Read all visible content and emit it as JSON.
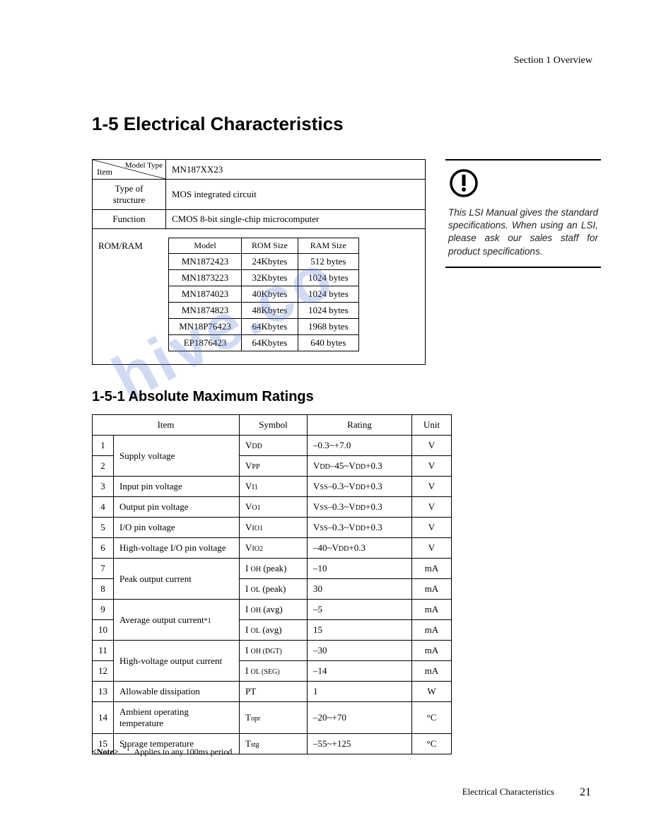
{
  "header": {
    "section": "Section 1  Overview"
  },
  "title": "1-5 Electrical Characteristics",
  "info_table": {
    "diag_top": "Model Type",
    "diag_bot": "Item",
    "model_header": "MN187XX23",
    "rows": [
      {
        "label": "Type of structure",
        "value": "MOS integrated circuit"
      },
      {
        "label": "Function",
        "value": "CMOS 8-bit single-chip microcomputer"
      }
    ],
    "romram_label": "ROM/RAM",
    "inner_headers": [
      "Model",
      "ROM Size",
      "RAM Size"
    ],
    "inner_rows": [
      [
        "MN1872423",
        "24Kbytes",
        "512 bytes"
      ],
      [
        "MN1873223",
        "32Kbytes",
        "1024 bytes"
      ],
      [
        "MN1874023",
        "40Kbytes",
        "1024 bytes"
      ],
      [
        "MN1874823",
        "48Kbytes",
        "1024 bytes"
      ],
      [
        "MN18P76423",
        "64Kbytes",
        "1968 bytes"
      ],
      [
        "EP1876423",
        "64Kbytes",
        "640 bytes"
      ]
    ]
  },
  "callout": {
    "text": "This LSI Manual gives the standard specifications. When using an LSI, please ask our sales staff for product specifications."
  },
  "subtitle": "1-5-1 Absolute Maximum Ratings",
  "ratings": {
    "headers": [
      "Item",
      "Symbol",
      "Rating",
      "Unit"
    ],
    "rows": [
      {
        "n": "1",
        "item": "Supply voltage",
        "rowspan": 2,
        "sym_html": "V<span class='sub'>DD</span>",
        "rating": "–0.3~+7.0",
        "unit": "V"
      },
      {
        "n": "2",
        "sym_html": "V<span class='sub'>PP</span>",
        "rating_html": "V<span class='sub'>DD</span>–45~V<span class='sub'>DD</span>+0.3",
        "unit": "V"
      },
      {
        "n": "3",
        "item": "Input pin voltage",
        "sym_html": "V<span class='sub'>I1</span>",
        "rating_html": "V<span class='sub'>SS</span>–0.3~V<span class='sub'>DD</span>+0.3",
        "unit": "V"
      },
      {
        "n": "4",
        "item": "Output pin voltage",
        "sym_html": "V<span class='sub'>O1</span>",
        "rating_html": "V<span class='sub'>SS</span>–0.3~V<span class='sub'>DD</span>+0.3",
        "unit": "V"
      },
      {
        "n": "5",
        "item": "I/O pin voltage",
        "sym_html": "V<span class='sub'>IO1</span>",
        "rating_html": "V<span class='sub'>SS</span>–0.3~V<span class='sub'>DD</span>+0.3",
        "unit": "V"
      },
      {
        "n": "6",
        "item": "High-voltage I/O pin voltage",
        "sym_html": "V<span class='sub'>IO2</span>",
        "rating_html": "–40~V<span class='sub'>DD</span>+0.3",
        "unit": "V"
      },
      {
        "n": "7",
        "item": "Peak output current",
        "rowspan": 2,
        "sym_html": "I <span class='sub'>OH</span> (peak)",
        "rating": "–10",
        "unit": "mA"
      },
      {
        "n": "8",
        "sym_html": "I <span class='sub'>OL</span> (peak)",
        "rating": "30",
        "unit": "mA"
      },
      {
        "n": "9",
        "item_html": "Average output current<span class='sub'>*1</span>",
        "rowspan": 2,
        "sym_html": "I <span class='sub'>OH</span> (avg)",
        "rating": "–5",
        "unit": "mA"
      },
      {
        "n": "10",
        "sym_html": "I <span class='sub'>OL</span> (avg)",
        "rating": "15",
        "unit": "mA"
      },
      {
        "n": "11",
        "item": "High-voltage output current",
        "rowspan": 2,
        "sym_html": "I <span class='sub'>OH (DGT)</span>",
        "rating": "–30",
        "unit": "mA"
      },
      {
        "n": "12",
        "sym_html": "I <span class='sub'>OL (SEG)</span>",
        "rating": "–14",
        "unit": "mA"
      },
      {
        "n": "13",
        "item": "Allowable dissipation",
        "sym_html": "PT",
        "rating": "1",
        "unit": "W"
      },
      {
        "n": "14",
        "item": "Ambient operating temperature",
        "sym_html": "T<span class='sub'>opr</span>",
        "rating": "–20~+70",
        "unit": "°C"
      },
      {
        "n": "15",
        "item": "Storage temperature",
        "sym_html": "T<span class='sub'>stg</span>",
        "rating": "–55~+125",
        "unit": "°C"
      }
    ]
  },
  "note": {
    "label": "<Note>",
    "sup": "*1",
    "text": "Applies to any 100ms period"
  },
  "footer": {
    "text": "Electrical Characteristics",
    "page": "21"
  },
  "watermark": "hive.co"
}
